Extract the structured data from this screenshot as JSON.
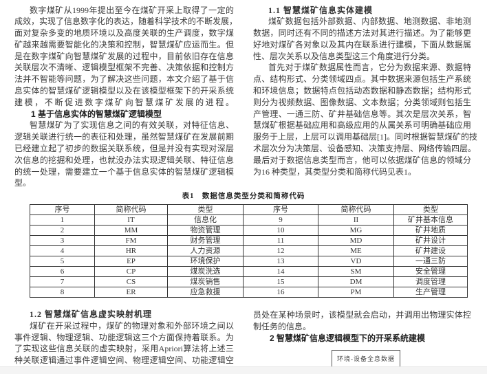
{
  "left_column": {
    "intro": [
      "数字煤矿从1999年提出至今在煤矿开采上取得了一定的",
      "成效，实现了信息数字化的表达，随着科学技术的不断发展，",
      "面对复杂多变的地质环境以及高度关联的生产调度，数字煤",
      "矿越来越需要智能化的决策和控制，智慧煤矿应运而生。但",
      "是在数字煤矿向智慧煤矿发展的过程中，目前依旧存在信息",
      "关联层次不清晰、逻辑模型框架不完善、决策依据和控制方",
      "法并不智能等问题，为了解决这些问题，本文介绍了基于信",
      "息实体的智慧煤矿逻辑模型以及在该模型框架下的开采系统",
      "建模，不断促进数字煤矿向智慧煤矿发展的进程。"
    ],
    "section1_heading": "1 基于信息实体的智慧煤矿逻辑模型",
    "section1_para": [
      "智慧煤矿为了实现信息之间的有效关联，对特征信息、",
      "逻辑关联进行统一的表征和处理，虽然智慧煤矿在发展前期",
      "已经建立起了初步的数据关联系统，但是并没有实现对深层",
      "次信息的挖掘和处理，也就没办法实现逻辑关联、特征信息",
      "的统一处理，需要建立一个基于信息实体的智慧煤矿逻辑模",
      "型。"
    ]
  },
  "right_column": {
    "section11_heading": "1.1 智慧煤矿信息实体建模",
    "para1": [
      "煤矿数据包括外部数据、内部数据、地测数据、非地测",
      "数据，同时还有不同的描述方法对其进行描述。为了能够更",
      "好地对煤矿各对象以及其内在联系进行建模，下面从数据属",
      "性、层次关系以及信息类型这三个角度进行分类。"
    ],
    "para2": [
      "首先对于煤矿数据属性而言，它分为数据来源、数据特",
      "点、结构形式、分类领域四点。其中数据来源包括生产系统",
      "和环境信息；数据特点包括动态数据和静态数据；结构形式",
      "则分为视频数据、图像数据、文本数据；分类领域则包括生",
      "产管理、一通三防、矿井基础信息等。其次是层次关系，智",
      "慧煤矿根据基础应用和高级应用的从属关系可明确基础应用",
      "服务于上层，上层可以调用基础层[1]。同时根据智慧煤矿的技",
      "术层次分为决策层、设备感知、决策支持层、网络传输四层。",
      "最后对于数据信息类型而言，他可以依据煤矿信息的领域分",
      "为16 种类型，其类型分类和简称代码见表1。"
    ]
  },
  "table1": {
    "title": "表1　数据信息类型分类和简称代码",
    "headers": [
      "序号",
      "简称代码",
      "类型",
      "序号",
      "简称代码",
      "类型"
    ],
    "rows": [
      [
        "1",
        "IT",
        "信息化",
        "9",
        "II",
        "矿井基本信息"
      ],
      [
        "2",
        "MM",
        "物资管理",
        "10",
        "MG",
        "矿井地质"
      ],
      [
        "3",
        "FM",
        "财务管理",
        "11",
        "MD",
        "矿井设计"
      ],
      [
        "4",
        "HR",
        "人力资源",
        "12",
        "ME",
        "矿井建设"
      ],
      [
        "5",
        "EP",
        "环境保护",
        "13",
        "VD",
        "一通三防"
      ],
      [
        "6",
        "CP",
        "煤炭洗选",
        "14",
        "SM",
        "安全管理"
      ],
      [
        "7",
        "CS",
        "煤炭销售",
        "15",
        "DM",
        "调度管理"
      ],
      [
        "8",
        "ER",
        "应急救援",
        "16",
        "PM",
        "生产管理"
      ]
    ]
  },
  "bottom_left": {
    "section12_heading": "1.2 智慧煤矿信息虚实映射机理",
    "para": [
      "煤矿在开采过程中，煤矿的物理对象和外部环境之间以",
      "事件逻辑、物理逻辑、功能逻辑这三个方面保持着联系。为",
      "了实现这些信息关联的虚实映射，采用Apriori算法将上述三",
      "种关联逻辑通过事件逻辑空间、物理逻辑空间、功能逻辑空"
    ]
  },
  "bottom_right": {
    "para": [
      "员处在某种场景时，该模型就会启动，并调用出物理实体控",
      "制任务的信息。"
    ],
    "section2_heading": "2 智慧煤矿信息逻辑模型下的开采系统建模",
    "figure_box_label": "环境-设备全息数据"
  }
}
